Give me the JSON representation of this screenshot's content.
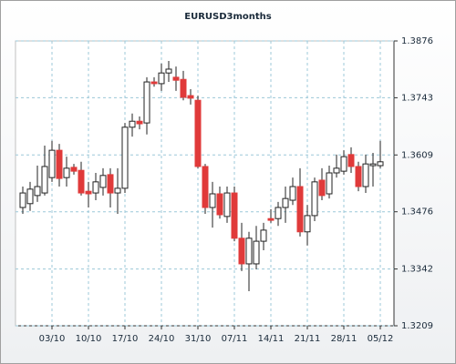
{
  "chart_data": {
    "type": "candlestick",
    "title": "EURUSD3months",
    "categories": [
      null,
      null,
      null,
      null,
      "03/10",
      null,
      null,
      null,
      null,
      "10/10",
      null,
      null,
      null,
      null,
      "17/10",
      null,
      null,
      null,
      null,
      "24/10",
      null,
      null,
      null,
      null,
      "31/10",
      null,
      null,
      null,
      null,
      "07/11",
      null,
      null,
      null,
      null,
      "14/11",
      null,
      null,
      null,
      null,
      "21/11",
      null,
      null,
      null,
      null,
      "28/11",
      null,
      null,
      null,
      null,
      "05/12"
    ],
    "open": [
      1.3486,
      1.3495,
      1.3514,
      1.352,
      1.3556,
      1.362,
      1.3556,
      1.358,
      1.3573,
      1.3524,
      1.352,
      1.3533,
      1.3563,
      1.352,
      1.3531,
      1.3674,
      1.3688,
      1.3684,
      1.378,
      1.3776,
      1.3801,
      1.3791,
      1.3786,
      1.3748,
      1.3737,
      1.3582,
      1.3486,
      1.3518,
      1.3465,
      1.352,
      1.3414,
      1.3354,
      1.3354,
      1.3407,
      1.346,
      1.346,
      1.3486,
      1.3503,
      1.3535,
      1.3429,
      1.3467,
      1.355,
      1.3518,
      1.3567,
      1.3571,
      1.361,
      1.3582,
      1.3535,
      1.3584,
      1.3584
    ],
    "high": [
      1.3535,
      1.3546,
      1.3584,
      1.3631,
      1.3642,
      1.3635,
      1.3605,
      1.3588,
      1.3593,
      1.3546,
      1.3567,
      1.3578,
      1.3578,
      1.3578,
      1.3684,
      1.3706,
      1.3699,
      1.3791,
      1.3791,
      1.3823,
      1.3829,
      1.3816,
      1.3806,
      1.3763,
      1.3748,
      1.3588,
      1.3546,
      1.3535,
      1.3535,
      1.3535,
      1.345,
      1.3429,
      1.3443,
      1.345,
      1.3482,
      1.3499,
      1.3535,
      1.3556,
      1.3578,
      1.3492,
      1.3556,
      1.3578,
      1.3584,
      1.361,
      1.362,
      1.3627,
      1.3593,
      1.361,
      1.3614,
      1.3642
    ],
    "low": [
      1.3471,
      1.3478,
      1.3499,
      1.3514,
      1.3546,
      1.3535,
      1.3535,
      1.3563,
      1.3514,
      1.3486,
      1.3503,
      1.3514,
      1.3486,
      1.3471,
      1.352,
      1.3652,
      1.3669,
      1.3657,
      1.3769,
      1.3759,
      1.378,
      1.3759,
      1.3737,
      1.3727,
      1.3578,
      1.3471,
      1.3439,
      1.346,
      1.345,
      1.3407,
      1.3337,
      1.329,
      1.3341,
      1.3386,
      1.345,
      1.3443,
      1.345,
      1.3492,
      1.3418,
      1.3397,
      1.3454,
      1.3503,
      1.3507,
      1.3556,
      1.3563,
      1.3567,
      1.3524,
      1.352,
      1.3535,
      1.3578
    ],
    "close": [
      1.352,
      1.3529,
      1.3535,
      1.3582,
      1.362,
      1.3554,
      1.3578,
      1.3571,
      1.352,
      1.3518,
      1.3546,
      1.3561,
      1.352,
      1.3531,
      1.3674,
      1.3688,
      1.3682,
      1.378,
      1.3776,
      1.3801,
      1.381,
      1.3784,
      1.3744,
      1.3742,
      1.3582,
      1.3486,
      1.3518,
      1.3469,
      1.352,
      1.3414,
      1.3354,
      1.3414,
      1.3407,
      1.3433,
      1.3456,
      1.3486,
      1.3507,
      1.3535,
      1.3429,
      1.3467,
      1.3546,
      1.3514,
      1.3567,
      1.3578,
      1.3605,
      1.3582,
      1.3535,
      1.3588,
      1.3588,
      1.3593
    ],
    "up_color": "#ffffff",
    "down_color": "#e03a3a",
    "ylim": [
      1.3209,
      1.3876
    ],
    "yticks": [
      1.3209,
      1.3342,
      1.3476,
      1.3609,
      1.3743,
      1.3876
    ],
    "grid": true
  }
}
